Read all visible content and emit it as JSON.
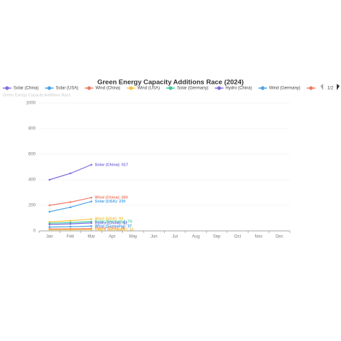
{
  "chart_data": {
    "type": "line",
    "title": "Green Energy Capacity Additions Race (2024)",
    "subtitle": "Green Energy Capacity Additions Race",
    "legend_page": "1/2",
    "categories": [
      "Jan",
      "Feb",
      "Mar",
      "Apr",
      "May",
      "Jun",
      "Jul",
      "Aug",
      "Sep",
      "Oct",
      "Nov",
      "Dec"
    ],
    "ylim": [
      0,
      1000
    ],
    "yticks": [
      0,
      200,
      400,
      600,
      800,
      1000
    ],
    "grid": true,
    "legend": "top",
    "series": [
      {
        "name": "Solar (China)",
        "color": "#7b6fe0",
        "label": "Solar (China): 517",
        "values": [
          400,
          450,
          517,
          null,
          null,
          null,
          null,
          null,
          null,
          null,
          null,
          null
        ]
      },
      {
        "name": "Solar (USA)",
        "color": "#4aa3e8",
        "label": "Solar (USA): 230",
        "values": [
          150,
          185,
          230,
          null,
          null,
          null,
          null,
          null,
          null,
          null,
          null,
          null
        ]
      },
      {
        "name": "Wind (China)",
        "color": "#f07b65",
        "label": "Wind (China): 260",
        "values": [
          200,
          225,
          260,
          null,
          null,
          null,
          null,
          null,
          null,
          null,
          null,
          null
        ]
      },
      {
        "name": "Wind (USA)",
        "color": "#f5c542",
        "label": "Wind (USA): 93",
        "values": [
          70,
          80,
          93,
          null,
          null,
          null,
          null,
          null,
          null,
          null,
          null,
          null
        ]
      },
      {
        "name": "Solar (Germany)",
        "color": "#3cc9a0",
        "label": "Solar (Germany): 73",
        "values": [
          60,
          65,
          73,
          null,
          null,
          null,
          null,
          null,
          null,
          null,
          null,
          null
        ]
      },
      {
        "name": "Hydro (China)",
        "color": "#7b6fe0",
        "label": "Hydro (China): 62",
        "values": [
          50,
          55,
          62,
          null,
          null,
          null,
          null,
          null,
          null,
          null,
          null,
          null
        ]
      },
      {
        "name": "Wind (Germany)",
        "color": "#4aa3e8",
        "label": "Wind (Germany): 37",
        "values": [
          30,
          33,
          37,
          null,
          null,
          null,
          null,
          null,
          null,
          null,
          null,
          null
        ]
      },
      {
        "name": "Hydro (USA)",
        "color": "#f07b65",
        "label": "Hydro (USA): 18",
        "values": [
          15,
          16,
          18,
          null,
          null,
          null,
          null,
          null,
          null,
          null,
          null,
          null
        ]
      },
      {
        "name": "Hydro (Germany)",
        "color": "#f5c542",
        "label": "Hydro (Germany): 10",
        "values": [
          8,
          9,
          10,
          null,
          null,
          null,
          null,
          null,
          null,
          null,
          null,
          null
        ]
      }
    ]
  }
}
